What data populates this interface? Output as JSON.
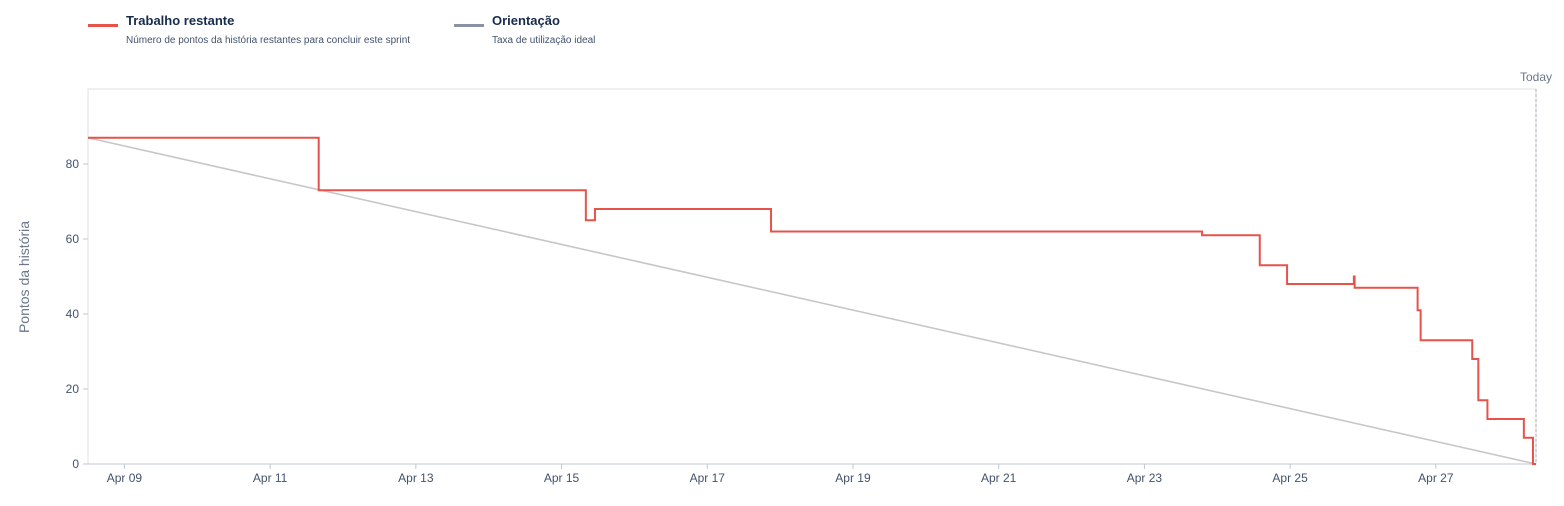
{
  "legend": {
    "items": [
      {
        "name": "Trabalho restante",
        "description": "Número de pontos da história restantes para concluir este sprint",
        "color": "#e5534b"
      },
      {
        "name": "Orientação",
        "description": "Taxa de utilização ideal",
        "color": "#8993a4"
      }
    ]
  },
  "chart_data": {
    "type": "line",
    "title": "",
    "ylabel": "Pontos da história",
    "xlabel": "",
    "x_range": [
      "2026-04-08T12:00",
      "2026-04-28T09:00"
    ],
    "ylim": [
      0,
      100
    ],
    "y_ticks": [
      0,
      20,
      40,
      60,
      80
    ],
    "x_ticks": [
      {
        "date": "2026-04-09",
        "label": "Apr 09"
      },
      {
        "date": "2026-04-11",
        "label": "Apr 11"
      },
      {
        "date": "2026-04-13",
        "label": "Apr 13"
      },
      {
        "date": "2026-04-15",
        "label": "Apr 15"
      },
      {
        "date": "2026-04-17",
        "label": "Apr 17"
      },
      {
        "date": "2026-04-19",
        "label": "Apr 19"
      },
      {
        "date": "2026-04-21",
        "label": "Apr 21"
      },
      {
        "date": "2026-04-23",
        "label": "Apr 23"
      },
      {
        "date": "2026-04-25",
        "label": "Apr 25"
      },
      {
        "date": "2026-04-27",
        "label": "Apr 27"
      }
    ],
    "today": {
      "date": "2026-04-28T09:00",
      "label": "Today"
    },
    "series": [
      {
        "name": "Trabalho restante",
        "step": true,
        "color": "#e5534b",
        "points": [
          [
            "2026-04-08T12:00",
            87
          ],
          [
            "2026-04-11T16:00",
            73
          ],
          [
            "2026-04-15T08:00",
            65
          ],
          [
            "2026-04-15T11:00",
            68
          ],
          [
            "2026-04-17T21:00",
            62
          ],
          [
            "2026-04-23T19:00",
            61
          ],
          [
            "2026-04-24T14:00",
            53
          ],
          [
            "2026-04-24T23:00",
            48
          ],
          [
            "2026-04-25T21:00",
            50
          ],
          [
            "2026-04-25T21:15",
            47
          ],
          [
            "2026-04-26T18:00",
            41
          ],
          [
            "2026-04-26T19:00",
            33
          ],
          [
            "2026-04-27T12:00",
            28
          ],
          [
            "2026-04-27T14:00",
            17
          ],
          [
            "2026-04-27T17:00",
            12
          ],
          [
            "2026-04-28T05:00",
            7
          ],
          [
            "2026-04-28T08:00",
            0
          ]
        ],
        "end": "2026-04-28T09:00"
      },
      {
        "name": "Orientação",
        "step": false,
        "color": "#c7c7c7",
        "points": [
          [
            "2026-04-08T12:00",
            87
          ],
          [
            "2026-04-28T09:00",
            0
          ]
        ]
      }
    ],
    "grid": false,
    "legend_position": "top-left"
  }
}
